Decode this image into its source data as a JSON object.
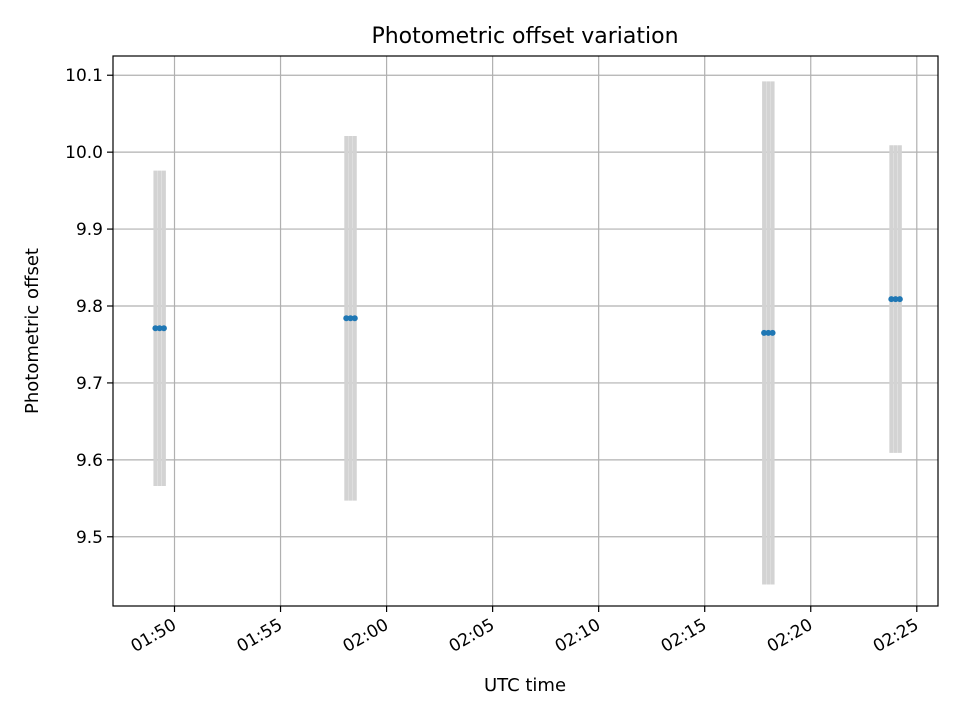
{
  "chart_data": {
    "type": "scatter",
    "title": "Photometric offset variation",
    "xlabel": "UTC time",
    "ylabel": "Photometric offset",
    "x_ticks": [
      "01:50",
      "01:55",
      "02:00",
      "02:05",
      "02:10",
      "02:15",
      "02:20",
      "02:25"
    ],
    "y_ticks": [
      "9.5",
      "9.6",
      "9.7",
      "9.8",
      "9.9",
      "10.0",
      "10.1"
    ],
    "xlim": [
      "01:47:06",
      "02:26:00"
    ],
    "ylim": [
      9.41,
      10.125
    ],
    "grid": true,
    "series": [
      {
        "marker_color": "#1f77b4",
        "errorbar_color": "#d3d3d3",
        "points": [
          {
            "x": "01:49:06",
            "y": 9.771,
            "yerr": 0.205
          },
          {
            "x": "01:49:18",
            "y": 9.771,
            "yerr": 0.205
          },
          {
            "x": "01:49:30",
            "y": 9.771,
            "yerr": 0.205
          },
          {
            "x": "01:58:06",
            "y": 9.784,
            "yerr": 0.237
          },
          {
            "x": "01:58:18",
            "y": 9.784,
            "yerr": 0.237
          },
          {
            "x": "01:58:30",
            "y": 9.784,
            "yerr": 0.237
          },
          {
            "x": "02:17:48",
            "y": 9.765,
            "yerr": 0.327
          },
          {
            "x": "02:18:00",
            "y": 9.765,
            "yerr": 0.327
          },
          {
            "x": "02:18:12",
            "y": 9.765,
            "yerr": 0.327
          },
          {
            "x": "02:23:48",
            "y": 9.809,
            "yerr": 0.2
          },
          {
            "x": "02:24:00",
            "y": 9.809,
            "yerr": 0.2
          },
          {
            "x": "02:24:12",
            "y": 9.809,
            "yerr": 0.2
          }
        ]
      }
    ]
  }
}
